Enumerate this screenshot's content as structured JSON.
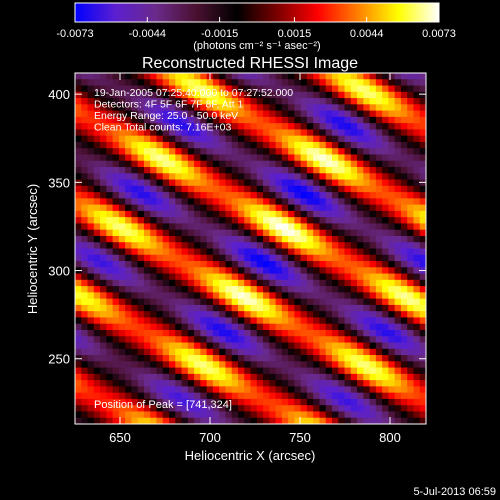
{
  "colorbar": {
    "tick_labels": [
      "-0.0073",
      "-0.0044",
      "-0.0015",
      "0.0015",
      "0.0044",
      "0.0073"
    ],
    "tick_values": [
      -0.0073,
      -0.0044,
      -0.0015,
      0.0015,
      0.0044,
      0.0073
    ],
    "range": [
      -0.0073,
      0.0073
    ],
    "units_label": "(photons cm⁻² s⁻¹ asec⁻²)",
    "colors": [
      "#0000ff",
      "#5b1fd0",
      "#6a2a8a",
      "#4a1030",
      "#000000",
      "#7a0000",
      "#ff0000",
      "#ff8000",
      "#ffff00",
      "#ffffff"
    ]
  },
  "chart_data": {
    "type": "heatmap",
    "title": "Reconstructed RHESSI Image",
    "xlabel": "Heliocentric X (arcsec)",
    "ylabel": "Heliocentric Y (arcsec)",
    "xlim": [
      625,
      820
    ],
    "ylim": [
      213,
      412
    ],
    "x_ticks": [
      650,
      700,
      750,
      800
    ],
    "y_ticks": [
      250,
      300,
      350,
      400
    ],
    "x_tick_labels": [
      "650",
      "700",
      "750",
      "800"
    ],
    "y_tick_labels": [
      "250",
      "300",
      "350",
      "400"
    ],
    "peak": {
      "x": 741,
      "y": 324
    },
    "annotations": [
      "19-Jan-2005 07:25:40.000 to 07:27:52.000",
      "Detectors: 4F 5F 6F 7F 8F, Att 1",
      "Energy Range: 25.0 - 50.0 keV",
      "Clean    Total counts: 7.16E+03"
    ],
    "peak_label": "Position of Peak = [741,324]"
  },
  "footer": {
    "timestamp": "5-Jul-2013 06:59"
  }
}
